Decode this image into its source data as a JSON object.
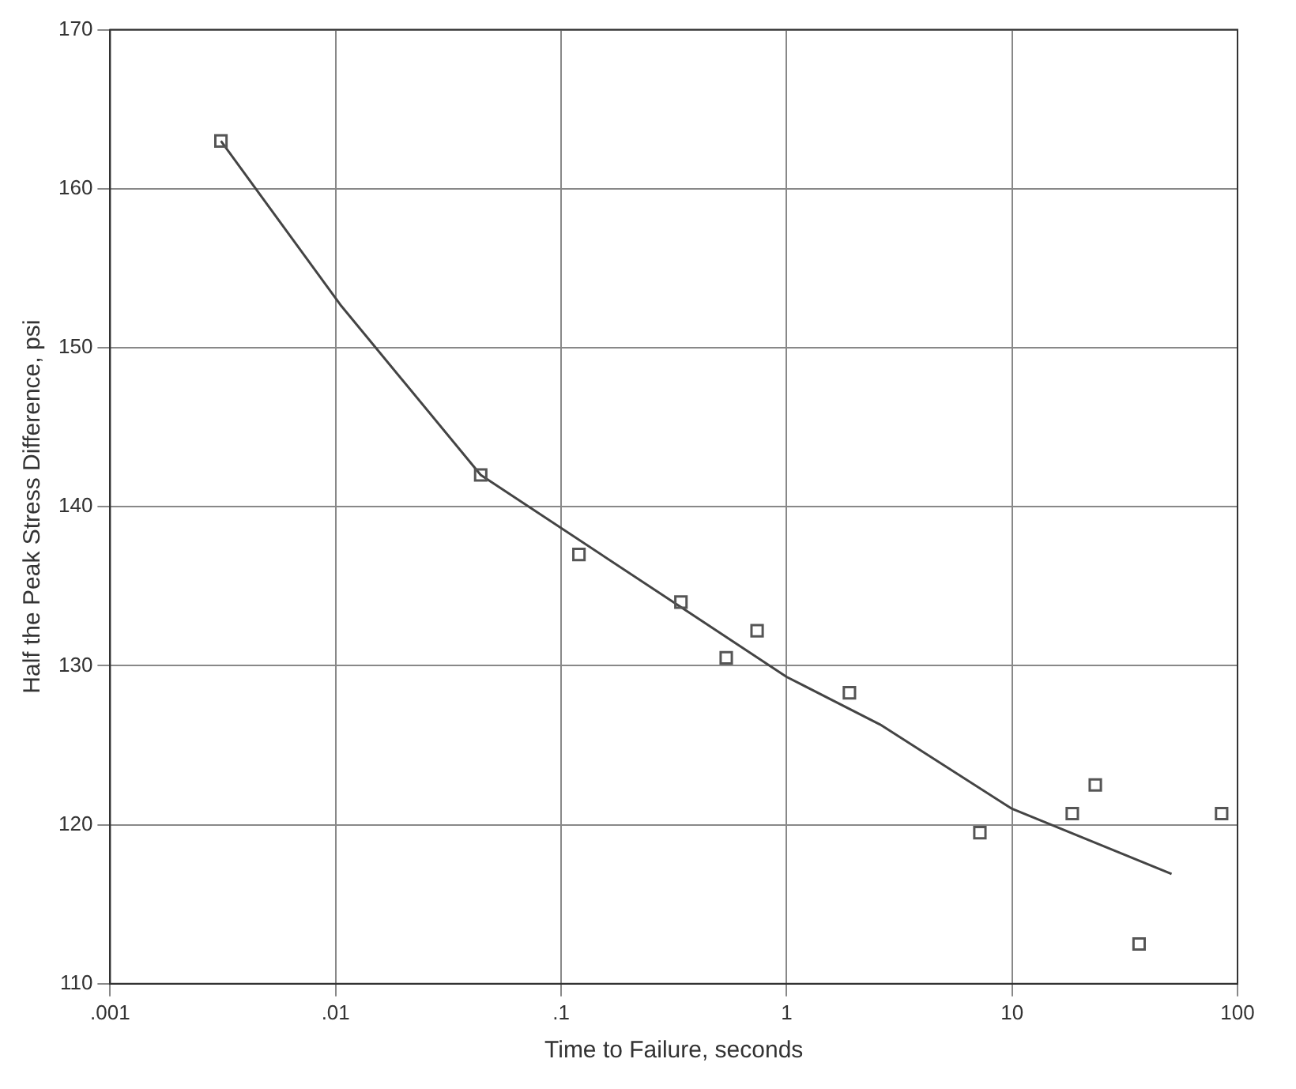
{
  "chart_data": {
    "type": "scatter",
    "xlabel": "Time to Failure, seconds",
    "ylabel": "Half the Peak Stress Difference, psi",
    "log": "x",
    "grid": true,
    "legend": false,
    "xlim": [
      0.001,
      100
    ],
    "ylim": [
      110,
      170
    ],
    "xticks": [
      {
        "value": 0.001,
        "label": ".001"
      },
      {
        "value": 0.01,
        "label": ".01"
      },
      {
        "value": 0.1,
        "label": ".1"
      },
      1,
      10,
      100
    ],
    "yticks": [
      110,
      120,
      130,
      140,
      150,
      160,
      170
    ],
    "series": [
      {
        "type": "scatter",
        "marker": "square",
        "color": "#555555",
        "x": [
          0.0031,
          0.044,
          0.12,
          0.34,
          0.54,
          0.74,
          1.9,
          7.2,
          18.5,
          23.4,
          36.6,
          85
        ],
        "values": [
          163,
          142,
          137,
          134,
          130.5,
          132.2,
          128.3,
          119.5,
          120.7,
          122.5,
          112.5,
          120.7
        ]
      },
      {
        "type": "line",
        "marker": "none",
        "line_style": "solid",
        "color": "#444444",
        "x": [
          0.0031,
          0.0105,
          0.044,
          1,
          2.6,
          10,
          51
        ],
        "values": [
          163,
          152.7,
          142,
          129.3,
          126.3,
          121,
          116.9
        ]
      }
    ]
  }
}
